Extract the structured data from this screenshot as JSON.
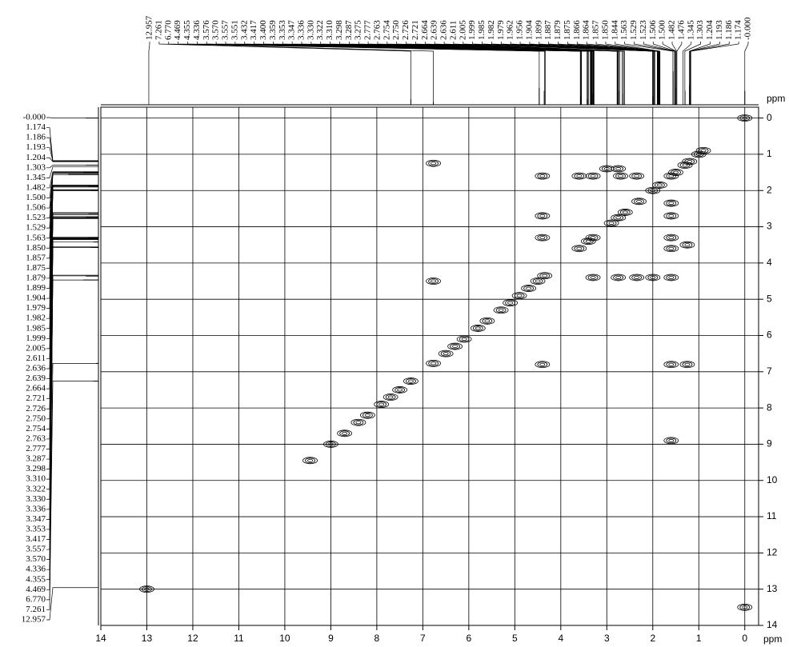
{
  "chart_data": {
    "type": "nmr2d",
    "x_label": "ppm",
    "y_label": "ppm",
    "xlim": [
      14,
      -0.3
    ],
    "ylim": [
      -0.3,
      14
    ],
    "xticks": [
      14,
      13,
      12,
      11,
      10,
      9,
      8,
      7,
      6,
      5,
      4,
      3,
      2,
      1,
      0
    ],
    "yticks": [
      0,
      1,
      2,
      3,
      4,
      5,
      6,
      7,
      8,
      9,
      10,
      11,
      12,
      13,
      14
    ],
    "grid": true,
    "color": "#000000",
    "top_peak_labels": [
      {
        "value": 12.957,
        "label": "12.957"
      },
      {
        "value": 7.261,
        "label": "7.261"
      },
      {
        "value": 6.77,
        "label": "6.770"
      },
      {
        "value": 4.469,
        "label": "4.469"
      },
      {
        "value": 4.355,
        "label": "4.355"
      },
      {
        "value": 4.336,
        "label": "4.336"
      },
      {
        "value": 3.576,
        "label": "3.576"
      },
      {
        "value": 3.57,
        "label": "3.570"
      },
      {
        "value": 3.557,
        "label": "3.557"
      },
      {
        "value": 3.551,
        "label": "3.551"
      },
      {
        "value": 3.432,
        "label": "3.432"
      },
      {
        "value": 3.417,
        "label": "3.417"
      },
      {
        "value": 3.4,
        "label": "3.400"
      },
      {
        "value": 3.359,
        "label": "3.359"
      },
      {
        "value": 3.353,
        "label": "3.353"
      },
      {
        "value": 3.347,
        "label": "3.347"
      },
      {
        "value": 3.336,
        "label": "3.336"
      },
      {
        "value": 3.33,
        "label": "3.330"
      },
      {
        "value": 3.322,
        "label": "3.322"
      },
      {
        "value": 3.31,
        "label": "3.310"
      },
      {
        "value": 3.298,
        "label": "3.298"
      },
      {
        "value": 3.287,
        "label": "3.287"
      },
      {
        "value": 3.275,
        "label": "3.275"
      },
      {
        "value": 2.777,
        "label": "2.777"
      },
      {
        "value": 2.763,
        "label": "2.763"
      },
      {
        "value": 2.754,
        "label": "2.754"
      },
      {
        "value": 2.75,
        "label": "2.750"
      },
      {
        "value": 2.726,
        "label": "2.726"
      },
      {
        "value": 2.721,
        "label": "2.721"
      },
      {
        "value": 2.664,
        "label": "2.664"
      },
      {
        "value": 2.639,
        "label": "2.639"
      },
      {
        "value": 2.636,
        "label": "2.636"
      },
      {
        "value": 2.611,
        "label": "2.611"
      },
      {
        "value": 2.005,
        "label": "2.005"
      },
      {
        "value": 1.999,
        "label": "1.999"
      },
      {
        "value": 1.985,
        "label": "1.985"
      },
      {
        "value": 1.982,
        "label": "1.982"
      },
      {
        "value": 1.979,
        "label": "1.979"
      },
      {
        "value": 1.962,
        "label": "1.962"
      },
      {
        "value": 1.956,
        "label": "1.956"
      },
      {
        "value": 1.904,
        "label": "1.904"
      },
      {
        "value": 1.899,
        "label": "1.899"
      },
      {
        "value": 1.887,
        "label": "1.887"
      },
      {
        "value": 1.879,
        "label": "1.879"
      },
      {
        "value": 1.875,
        "label": "1.875"
      },
      {
        "value": 1.866,
        "label": "1.866"
      },
      {
        "value": 1.864,
        "label": "1.864"
      },
      {
        "value": 1.857,
        "label": "1.857"
      },
      {
        "value": 1.85,
        "label": "1.850"
      },
      {
        "value": 1.844,
        "label": "1.844"
      },
      {
        "value": 1.563,
        "label": "1.563"
      },
      {
        "value": 1.529,
        "label": "1.529"
      },
      {
        "value": 1.523,
        "label": "1.523"
      },
      {
        "value": 1.506,
        "label": "1.506"
      },
      {
        "value": 1.5,
        "label": "1.500"
      },
      {
        "value": 1.482,
        "label": "1.482"
      },
      {
        "value": 1.476,
        "label": "1.476"
      },
      {
        "value": 1.345,
        "label": "1.345"
      },
      {
        "value": 1.303,
        "label": "1.303"
      },
      {
        "value": 1.204,
        "label": "1.204"
      },
      {
        "value": 1.193,
        "label": "1.193"
      },
      {
        "value": 1.186,
        "label": "1.186"
      },
      {
        "value": 1.174,
        "label": "1.174"
      },
      {
        "value": 0,
        "label": "-0.000"
      }
    ],
    "left_peak_labels": [
      {
        "value": 0,
        "label": "-0.000"
      },
      {
        "value": 1.174,
        "label": "1.174"
      },
      {
        "value": 1.186,
        "label": "1.186"
      },
      {
        "value": 1.193,
        "label": "1.193"
      },
      {
        "value": 1.204,
        "label": "1.204"
      },
      {
        "value": 1.303,
        "label": "1.303"
      },
      {
        "value": 1.345,
        "label": "1.345"
      },
      {
        "value": 1.482,
        "label": "1.482"
      },
      {
        "value": 1.5,
        "label": "1.500"
      },
      {
        "value": 1.506,
        "label": "1.506"
      },
      {
        "value": 1.523,
        "label": "1.523"
      },
      {
        "value": 1.529,
        "label": "1.529"
      },
      {
        "value": 1.563,
        "label": "1.563"
      },
      {
        "value": 1.85,
        "label": "1.850"
      },
      {
        "value": 1.857,
        "label": "1.857"
      },
      {
        "value": 1.875,
        "label": "1.875"
      },
      {
        "value": 1.879,
        "label": "1.879"
      },
      {
        "value": 1.899,
        "label": "1.899"
      },
      {
        "value": 1.904,
        "label": "1.904"
      },
      {
        "value": 1.979,
        "label": "1.979"
      },
      {
        "value": 1.982,
        "label": "1.982"
      },
      {
        "value": 1.985,
        "label": "1.985"
      },
      {
        "value": 1.999,
        "label": "1.999"
      },
      {
        "value": 2.005,
        "label": "2.005"
      },
      {
        "value": 2.611,
        "label": "2.611"
      },
      {
        "value": 2.636,
        "label": "2.636"
      },
      {
        "value": 2.639,
        "label": "2.639"
      },
      {
        "value": 2.664,
        "label": "2.664"
      },
      {
        "value": 2.721,
        "label": "2.721"
      },
      {
        "value": 2.726,
        "label": "2.726"
      },
      {
        "value": 2.75,
        "label": "2.750"
      },
      {
        "value": 2.754,
        "label": "2.754"
      },
      {
        "value": 2.763,
        "label": "2.763"
      },
      {
        "value": 2.777,
        "label": "2.777"
      },
      {
        "value": 3.287,
        "label": "3.287"
      },
      {
        "value": 3.298,
        "label": "3.298"
      },
      {
        "value": 3.31,
        "label": "3.310"
      },
      {
        "value": 3.322,
        "label": "3.322"
      },
      {
        "value": 3.33,
        "label": "3.330"
      },
      {
        "value": 3.336,
        "label": "3.336"
      },
      {
        "value": 3.347,
        "label": "3.347"
      },
      {
        "value": 3.353,
        "label": "3.353"
      },
      {
        "value": 3.417,
        "label": "3.417"
      },
      {
        "value": 3.557,
        "label": "3.557"
      },
      {
        "value": 3.57,
        "label": "3.570"
      },
      {
        "value": 4.336,
        "label": "4.336"
      },
      {
        "value": 4.355,
        "label": "4.355"
      },
      {
        "value": 4.469,
        "label": "4.469"
      },
      {
        "value": 6.77,
        "label": "6.770"
      },
      {
        "value": 7.261,
        "label": "7.261"
      },
      {
        "value": 12.957,
        "label": "12.957"
      }
    ],
    "projection": {
      "x": [
        7.26,
        6.77,
        4.47,
        4.36,
        3.57,
        3.42,
        3.3,
        2.75,
        2.64,
        2.0,
        1.88,
        1.56,
        1.5,
        1.3,
        1.2,
        0
      ],
      "intensity": [
        10,
        5,
        30,
        25,
        15,
        10,
        20,
        25,
        20,
        15,
        20,
        60,
        30,
        25,
        35,
        25
      ]
    },
    "peaks": {
      "x": [
        0,
        0.9,
        1.0,
        1.2,
        1.3,
        1.5,
        1.6,
        1.85,
        2.0,
        2.3,
        2.6,
        2.75,
        2.9,
        3.3,
        3.4,
        3.6,
        4.35,
        4.5,
        4.7,
        4.9,
        5.1,
        5.3,
        5.6,
        5.8,
        6.1,
        6.3,
        6.5,
        6.77,
        7.26,
        7.5,
        7.7,
        7.9,
        8.2,
        8.4,
        8.7,
        9.0,
        13.0,
        6.77,
        4.4,
        3.6,
        3.3,
        2.7,
        2.35,
        3.0,
        2.75,
        1.6,
        1.6,
        1.6,
        1.6,
        1.6,
        4.4,
        4.4,
        3.3,
        2.75,
        2.35,
        2.0,
        6.77,
        4.4,
        1.25,
        1.6,
        1.25,
        1.6,
        9.45,
        0
      ],
      "y": [
        0,
        0.9,
        1.0,
        1.2,
        1.3,
        1.5,
        1.6,
        1.85,
        2.0,
        2.3,
        2.6,
        2.75,
        2.9,
        3.3,
        3.4,
        3.6,
        4.35,
        4.5,
        4.7,
        4.9,
        5.1,
        5.3,
        5.6,
        5.8,
        6.1,
        6.3,
        6.5,
        6.77,
        7.26,
        7.5,
        7.7,
        7.9,
        8.2,
        8.4,
        8.7,
        9.0,
        13.0,
        1.25,
        1.6,
        1.6,
        1.6,
        1.6,
        1.6,
        1.4,
        1.4,
        2.35,
        2.7,
        3.3,
        3.6,
        4.4,
        2.7,
        3.3,
        4.4,
        4.4,
        4.4,
        4.4,
        4.5,
        6.8,
        6.8,
        6.8,
        3.5,
        8.9,
        9.45,
        13.5
      ]
    }
  }
}
